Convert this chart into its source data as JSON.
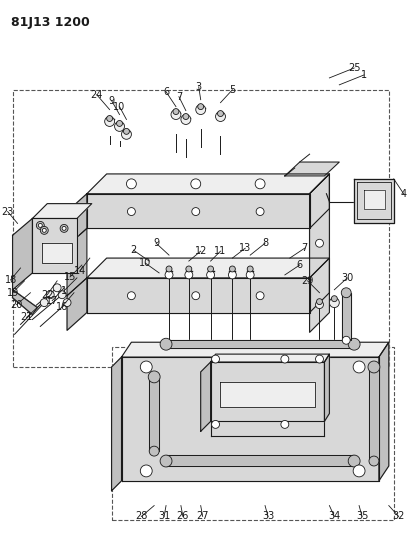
{
  "title": "81J13 1200",
  "bg_color": "#ffffff",
  "line_color": "#1a1a1a",
  "gray_fill": "#d8d8d8",
  "light_gray": "#eeeeee",
  "mid_gray": "#c0c0c0"
}
